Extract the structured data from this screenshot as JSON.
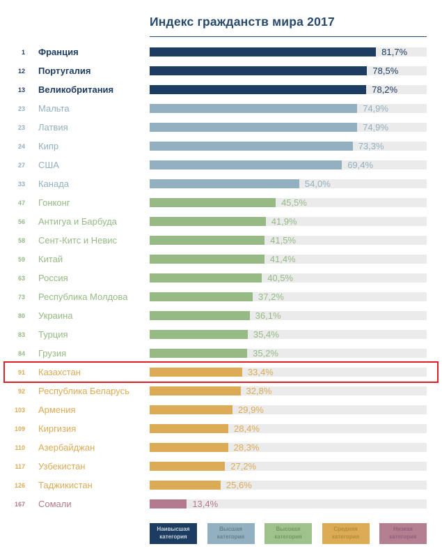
{
  "page": {
    "title": "Индекс гражданств мира 2017"
  },
  "colors": {
    "highest": "#1d3c61",
    "higher": "#92b0bf",
    "high": "#95ba84",
    "medium": "#dcab56",
    "low": "#b3798e",
    "track": "#ebebeb",
    "highlight_border": "#e31e24",
    "title": "#27496d",
    "rule": "#27496d"
  },
  "chart_data": {
    "type": "bar",
    "orientation": "horizontal",
    "title": "Индекс гражданств мира 2017",
    "xlabel": "",
    "ylabel": "",
    "xlim": [
      0,
      100
    ],
    "grid": false,
    "legend_position": "bottom",
    "rows": [
      {
        "rank": "1",
        "country": "Франция",
        "value": 81.7,
        "value_label": "81,7%",
        "category": "highest",
        "highlighted": false
      },
      {
        "rank": "12",
        "country": "Португалия",
        "value": 78.5,
        "value_label": "78,5%",
        "category": "highest",
        "highlighted": false
      },
      {
        "rank": "13",
        "country": "Великобритания",
        "value": 78.2,
        "value_label": "78,2%",
        "category": "highest",
        "highlighted": false
      },
      {
        "rank": "23",
        "country": "Мальта",
        "value": 74.9,
        "value_label": "74,9%",
        "category": "higher",
        "highlighted": false
      },
      {
        "rank": "23",
        "country": "Латвия",
        "value": 74.9,
        "value_label": "74,9%",
        "category": "higher",
        "highlighted": false
      },
      {
        "rank": "24",
        "country": "Кипр",
        "value": 73.3,
        "value_label": "73,3%",
        "category": "higher",
        "highlighted": false
      },
      {
        "rank": "27",
        "country": "США",
        "value": 69.4,
        "value_label": "69,4%",
        "category": "higher",
        "highlighted": false
      },
      {
        "rank": "33",
        "country": "Канада",
        "value": 54.0,
        "value_label": "54,0%",
        "category": "higher",
        "highlighted": false
      },
      {
        "rank": "47",
        "country": "Гонконг",
        "value": 45.5,
        "value_label": "45,5%",
        "category": "high",
        "highlighted": false
      },
      {
        "rank": "56",
        "country": "Антигуа и Барбуда",
        "value": 41.9,
        "value_label": "41,9%",
        "category": "high",
        "highlighted": false
      },
      {
        "rank": "58",
        "country": "Сент-Китс и Невис",
        "value": 41.5,
        "value_label": "41,5%",
        "category": "high",
        "highlighted": false
      },
      {
        "rank": "59",
        "country": "Китай",
        "value": 41.4,
        "value_label": "41,4%",
        "category": "high",
        "highlighted": false
      },
      {
        "rank": "63",
        "country": "Россия",
        "value": 40.5,
        "value_label": "40,5%",
        "category": "high",
        "highlighted": false
      },
      {
        "rank": "73",
        "country": "Республика Молдова",
        "value": 37.2,
        "value_label": "37,2%",
        "category": "high",
        "highlighted": false
      },
      {
        "rank": "80",
        "country": "Украина",
        "value": 36.1,
        "value_label": "36,1%",
        "category": "high",
        "highlighted": false
      },
      {
        "rank": "83",
        "country": "Турция",
        "value": 35.4,
        "value_label": "35,4%",
        "category": "high",
        "highlighted": false
      },
      {
        "rank": "84",
        "country": "Грузия",
        "value": 35.2,
        "value_label": "35,2%",
        "category": "high",
        "highlighted": false
      },
      {
        "rank": "91",
        "country": "Казахстан",
        "value": 33.4,
        "value_label": "33,4%",
        "category": "medium",
        "highlighted": true
      },
      {
        "rank": "92",
        "country": "Республика Беларусь",
        "value": 32.8,
        "value_label": "32,8%",
        "category": "medium",
        "highlighted": false
      },
      {
        "rank": "103",
        "country": "Армения",
        "value": 29.9,
        "value_label": "29,9%",
        "category": "medium",
        "highlighted": false
      },
      {
        "rank": "109",
        "country": "Киргизия",
        "value": 28.4,
        "value_label": "28,4%",
        "category": "medium",
        "highlighted": false
      },
      {
        "rank": "110",
        "country": "Азербайджан",
        "value": 28.3,
        "value_label": "28,3%",
        "category": "medium",
        "highlighted": false
      },
      {
        "rank": "117",
        "country": "Узбекистан",
        "value": 27.2,
        "value_label": "27,2%",
        "category": "medium",
        "highlighted": false
      },
      {
        "rank": "126",
        "country": "Таджикистан",
        "value": 25.6,
        "value_label": "25,6%",
        "category": "medium",
        "highlighted": false
      },
      {
        "rank": "167",
        "country": "Сомали",
        "value": 13.4,
        "value_label": "13,4%",
        "category": "low",
        "highlighted": false
      }
    ],
    "legend": [
      {
        "label": "Наивысшая категория",
        "category": "highest",
        "bg": "#1d3c61",
        "text_color": "#c9d3dc"
      },
      {
        "label": "Высшая категория",
        "category": "higher",
        "bg": "#92b0bf",
        "text_color": "#64808f"
      },
      {
        "label": "Высокая категория",
        "category": "high",
        "bg": "#9fc28d",
        "text_color": "#74995f"
      },
      {
        "label": "Средняя категория",
        "category": "medium",
        "bg": "#dcab56",
        "text_color": "#b88a39"
      },
      {
        "label": "Низкая категория",
        "category": "low",
        "bg": "#b57f92",
        "text_color": "#92607a"
      }
    ]
  }
}
